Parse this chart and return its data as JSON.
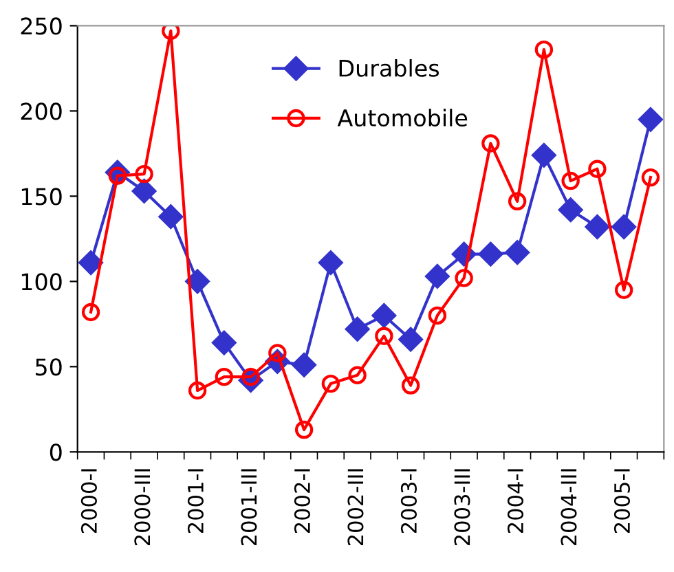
{
  "chart_data": {
    "type": "line",
    "categories": [
      "2000-I",
      null,
      "2000-III",
      null,
      "2001-I",
      null,
      "2001-III",
      null,
      "2002-I",
      null,
      "2002-III",
      null,
      "2003-I",
      null,
      "2003-III",
      null,
      "2004-I",
      null,
      "2004-III",
      null,
      "2005-I",
      null
    ],
    "series": [
      {
        "name": "Durables",
        "color": "#3333cc",
        "marker": "diamond",
        "values": [
          111,
          164,
          153,
          138,
          100,
          64,
          42,
          53,
          51,
          111,
          72,
          80,
          66,
          103,
          116,
          116,
          117,
          174,
          142,
          132,
          132,
          195
        ]
      },
      {
        "name": "Automobile",
        "color": "#ff0000",
        "marker": "circle",
        "values": [
          82,
          162,
          163,
          247,
          36,
          44,
          44,
          58,
          13,
          40,
          45,
          68,
          39,
          80,
          102,
          181,
          147,
          236,
          159,
          166,
          95,
          161
        ]
      }
    ],
    "ylim": [
      0,
      250
    ],
    "yticks": [
      0,
      50,
      100,
      150,
      200,
      250
    ],
    "grid": false,
    "legend": "top"
  }
}
